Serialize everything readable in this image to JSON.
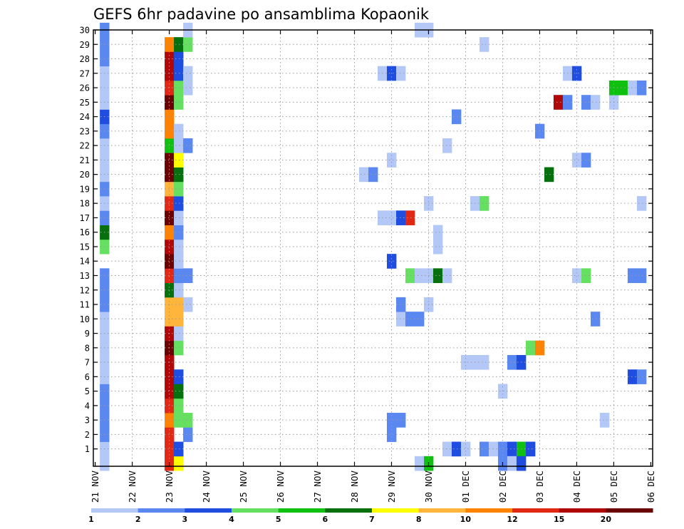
{
  "chart_data": {
    "type": "heatmap",
    "title": "GEFS 6hr padavine po ansamblima Kopaonik",
    "x_unit": "6-hour step from 21 NOV 00z",
    "x_range": [
      0,
      60
    ],
    "y_range": [
      0,
      30
    ],
    "x_tick_labels": [
      {
        "x": 0,
        "label": "21 NOV"
      },
      {
        "x": 4,
        "label": "22 NOV"
      },
      {
        "x": 8,
        "label": "23 NOV"
      },
      {
        "x": 12,
        "label": "24 NOV"
      },
      {
        "x": 16,
        "label": "25 NOV"
      },
      {
        "x": 20,
        "label": "26 NOV"
      },
      {
        "x": 24,
        "label": "27 NOV"
      },
      {
        "x": 28,
        "label": "28 NOV"
      },
      {
        "x": 32,
        "label": "29 NOV"
      },
      {
        "x": 36,
        "label": "30 NOV"
      },
      {
        "x": 40,
        "label": "01 DEC"
      },
      {
        "x": 44,
        "label": "02 DEC"
      },
      {
        "x": 48,
        "label": "03 DEC"
      },
      {
        "x": 52,
        "label": "04 DEC"
      },
      {
        "x": 56,
        "label": "05 DEC"
      },
      {
        "x": 60,
        "label": "06 DEC"
      }
    ],
    "y_ticks": [
      1,
      2,
      3,
      4,
      5,
      6,
      7,
      8,
      9,
      10,
      11,
      12,
      13,
      14,
      15,
      16,
      17,
      18,
      19,
      20,
      21,
      22,
      23,
      24,
      25,
      26,
      27,
      28,
      29,
      30
    ],
    "grid": true,
    "legend_position": "bottom",
    "legend": {
      "colors": [
        "#b4c8f8",
        "#5a88f0",
        "#1f4de0",
        "#66e060",
        "#10c010",
        "#06700e",
        "#ffff00",
        "#ffb43c",
        "#ff8200",
        "#e02814",
        "#b00808",
        "#6a0000"
      ],
      "labels": [
        "1",
        "2",
        "3",
        "4",
        "5",
        "6",
        "7",
        "8",
        "10",
        "12",
        "15",
        "20"
      ]
    },
    "cells": [
      [
        1,
        0,
        1
      ],
      [
        1,
        1,
        1
      ],
      [
        1,
        2,
        2
      ],
      [
        1,
        3,
        2
      ],
      [
        1,
        4,
        2
      ],
      [
        1,
        5,
        2
      ],
      [
        1,
        6,
        1
      ],
      [
        1,
        7,
        1
      ],
      [
        1,
        8,
        1
      ],
      [
        1,
        9,
        1
      ],
      [
        1,
        10,
        1
      ],
      [
        1,
        11,
        2
      ],
      [
        1,
        12,
        2
      ],
      [
        1,
        13,
        2
      ],
      [
        1,
        15,
        4
      ],
      [
        1,
        16,
        6
      ],
      [
        1,
        17,
        2
      ],
      [
        1,
        18,
        1
      ],
      [
        1,
        19,
        2
      ],
      [
        1,
        20,
        1
      ],
      [
        1,
        21,
        1
      ],
      [
        1,
        22,
        1
      ],
      [
        1,
        23,
        2
      ],
      [
        1,
        24,
        3
      ],
      [
        1,
        25,
        1
      ],
      [
        1,
        26,
        1
      ],
      [
        1,
        27,
        1
      ],
      [
        1,
        28,
        2
      ],
      [
        1,
        29,
        2
      ],
      [
        1,
        30,
        2
      ],
      [
        8,
        0,
        10
      ],
      [
        8,
        1,
        10
      ],
      [
        8,
        2,
        10
      ],
      [
        8,
        3,
        9
      ],
      [
        8,
        4,
        10
      ],
      [
        8,
        5,
        11
      ],
      [
        8,
        6,
        11
      ],
      [
        8,
        7,
        11
      ],
      [
        8,
        8,
        12
      ],
      [
        8,
        9,
        11
      ],
      [
        8,
        10,
        8
      ],
      [
        8,
        11,
        8
      ],
      [
        8,
        12,
        6
      ],
      [
        8,
        13,
        10
      ],
      [
        8,
        14,
        12
      ],
      [
        8,
        15,
        11
      ],
      [
        8,
        16,
        9
      ],
      [
        8,
        17,
        12
      ],
      [
        8,
        18,
        10
      ],
      [
        8,
        19,
        8
      ],
      [
        8,
        20,
        12
      ],
      [
        8,
        21,
        12
      ],
      [
        8,
        22,
        5
      ],
      [
        8,
        23,
        9
      ],
      [
        8,
        24,
        9
      ],
      [
        8,
        25,
        12
      ],
      [
        8,
        26,
        10
      ],
      [
        8,
        27,
        11
      ],
      [
        8,
        28,
        11
      ],
      [
        8,
        29,
        9
      ],
      [
        9,
        0,
        7
      ],
      [
        9,
        1,
        3
      ],
      [
        9,
        3,
        4
      ],
      [
        9,
        4,
        4
      ],
      [
        9,
        5,
        6
      ],
      [
        9,
        6,
        3
      ],
      [
        9,
        8,
        4
      ],
      [
        9,
        9,
        1
      ],
      [
        9,
        10,
        8
      ],
      [
        9,
        11,
        8
      ],
      [
        9,
        12,
        1
      ],
      [
        9,
        13,
        2
      ],
      [
        9,
        14,
        1
      ],
      [
        9,
        15,
        1
      ],
      [
        9,
        16,
        2
      ],
      [
        9,
        17,
        1
      ],
      [
        9,
        18,
        3
      ],
      [
        9,
        19,
        4
      ],
      [
        9,
        20,
        6
      ],
      [
        9,
        21,
        7
      ],
      [
        9,
        22,
        1
      ],
      [
        9,
        23,
        1
      ],
      [
        9,
        25,
        4
      ],
      [
        9,
        26,
        4
      ],
      [
        9,
        27,
        3
      ],
      [
        9,
        28,
        3
      ],
      [
        9,
        29,
        6
      ],
      [
        10,
        2,
        2
      ],
      [
        10,
        3,
        4
      ],
      [
        10,
        11,
        1
      ],
      [
        10,
        13,
        2
      ],
      [
        10,
        22,
        2
      ],
      [
        10,
        26,
        1
      ],
      [
        10,
        27,
        1
      ],
      [
        10,
        29,
        4
      ],
      [
        10,
        30,
        1
      ],
      [
        29,
        20,
        1
      ],
      [
        30,
        20,
        2
      ],
      [
        31,
        17,
        1
      ],
      [
        31,
        27,
        1
      ],
      [
        32,
        2,
        2
      ],
      [
        32,
        3,
        2
      ],
      [
        32,
        14,
        3
      ],
      [
        32,
        17,
        1
      ],
      [
        32,
        21,
        1
      ],
      [
        32,
        27,
        3
      ],
      [
        33,
        3,
        2
      ],
      [
        33,
        10,
        1
      ],
      [
        33,
        11,
        2
      ],
      [
        33,
        17,
        3
      ],
      [
        33,
        27,
        1
      ],
      [
        34,
        13,
        4
      ],
      [
        34,
        17,
        10
      ],
      [
        34,
        10,
        2
      ],
      [
        35,
        10,
        2
      ],
      [
        35,
        13,
        1
      ],
      [
        35,
        0,
        1
      ],
      [
        36,
        13,
        1
      ],
      [
        36,
        18,
        1
      ],
      [
        36,
        11,
        1
      ],
      [
        36,
        30,
        1
      ],
      [
        35,
        30,
        1
      ],
      [
        36,
        0,
        5
      ],
      [
        37,
        13,
        6
      ],
      [
        37,
        15,
        1
      ],
      [
        37,
        16,
        1
      ],
      [
        38,
        13,
        1
      ],
      [
        38,
        1,
        1
      ],
      [
        39,
        1,
        3
      ],
      [
        40,
        1,
        1
      ],
      [
        40,
        7,
        1
      ],
      [
        41,
        7,
        1
      ],
      [
        42,
        7,
        1
      ],
      [
        39,
        24,
        2
      ],
      [
        38,
        22,
        1
      ],
      [
        41,
        18,
        1
      ],
      [
        42,
        18,
        4
      ],
      [
        42,
        29,
        1
      ],
      [
        42,
        1,
        2
      ],
      [
        43,
        1,
        1
      ],
      [
        44,
        1,
        2
      ],
      [
        44,
        5,
        1
      ],
      [
        44,
        0,
        2
      ],
      [
        45,
        1,
        3
      ],
      [
        45,
        0,
        1
      ],
      [
        45,
        7,
        2
      ],
      [
        46,
        7,
        3
      ],
      [
        46,
        1,
        5
      ],
      [
        46,
        0,
        3
      ],
      [
        47,
        1,
        3
      ],
      [
        47,
        8,
        4
      ],
      [
        48,
        8,
        9
      ],
      [
        48,
        23,
        2
      ],
      [
        49,
        20,
        6
      ],
      [
        50,
        25,
        11
      ],
      [
        51,
        25,
        2
      ],
      [
        51,
        27,
        1
      ],
      [
        52,
        27,
        3
      ],
      [
        52,
        21,
        1
      ],
      [
        53,
        21,
        2
      ],
      [
        52,
        13,
        1
      ],
      [
        53,
        13,
        4
      ],
      [
        53,
        25,
        2
      ],
      [
        54,
        25,
        1
      ],
      [
        54,
        10,
        2
      ],
      [
        55,
        3,
        1
      ],
      [
        56,
        25,
        1
      ],
      [
        56,
        26,
        5
      ],
      [
        57,
        26,
        5
      ],
      [
        58,
        26,
        1
      ],
      [
        59,
        26,
        2
      ],
      [
        58,
        6,
        3
      ],
      [
        59,
        6,
        2
      ],
      [
        58,
        13,
        2
      ],
      [
        59,
        13,
        2
      ],
      [
        59,
        18,
        1
      ]
    ]
  }
}
